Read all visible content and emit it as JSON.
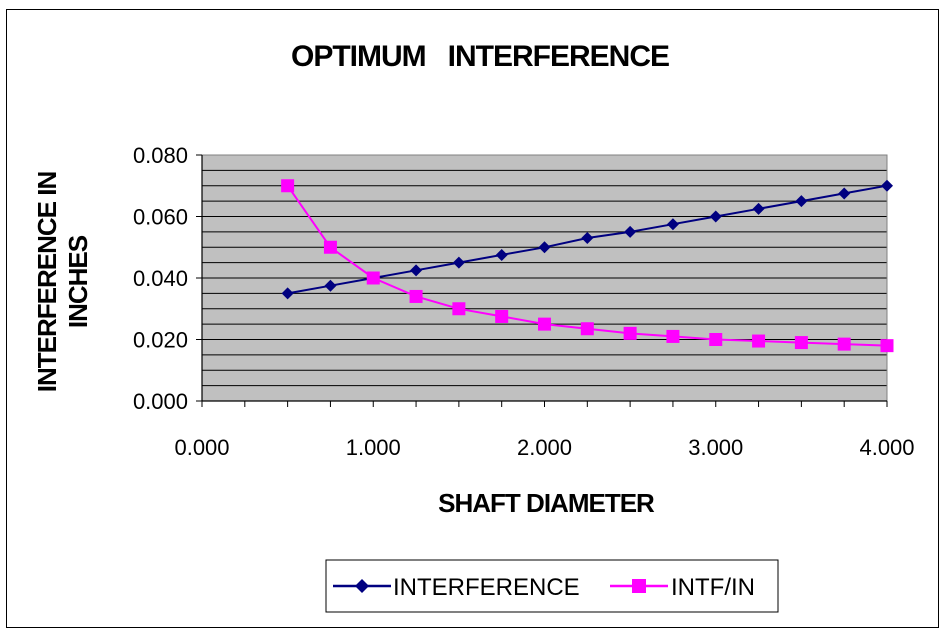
{
  "chart_data": {
    "type": "line",
    "title": "OPTIMUM   INTERFERENCE",
    "xlabel": "SHAFT DIAMETER",
    "ylabel_lines": [
      "INTERFERENCE IN",
      "INCHES"
    ],
    "xlim": [
      0,
      4
    ],
    "ylim": [
      0,
      0.08
    ],
    "x_ticks": [
      "0.000",
      "1.000",
      "2.000",
      "3.000",
      "4.000"
    ],
    "y_ticks": [
      "0.000",
      "0.020",
      "0.040",
      "0.060",
      "0.080"
    ],
    "grid": "horizontal",
    "legend_position": "bottom",
    "plot_background": "#c0c0c0",
    "x": [
      0.5,
      0.75,
      1.0,
      1.25,
      1.5,
      1.75,
      2.0,
      2.25,
      2.5,
      2.75,
      3.0,
      3.25,
      3.5,
      3.75,
      4.0
    ],
    "series": [
      {
        "name": "INTERFERENCE",
        "color": "#000080",
        "marker": "diamond",
        "values": [
          0.035,
          0.0375,
          0.04,
          0.0425,
          0.045,
          0.0475,
          0.05,
          0.053,
          0.055,
          0.0575,
          0.06,
          0.0625,
          0.065,
          0.0675,
          0.07
        ]
      },
      {
        "name": "INTF/IN",
        "color": "#ff00ff",
        "marker": "square",
        "values": [
          0.07,
          0.05,
          0.04,
          0.034,
          0.03,
          0.0275,
          0.025,
          0.0235,
          0.022,
          0.021,
          0.02,
          0.0195,
          0.019,
          0.0185,
          0.018
        ]
      }
    ]
  }
}
